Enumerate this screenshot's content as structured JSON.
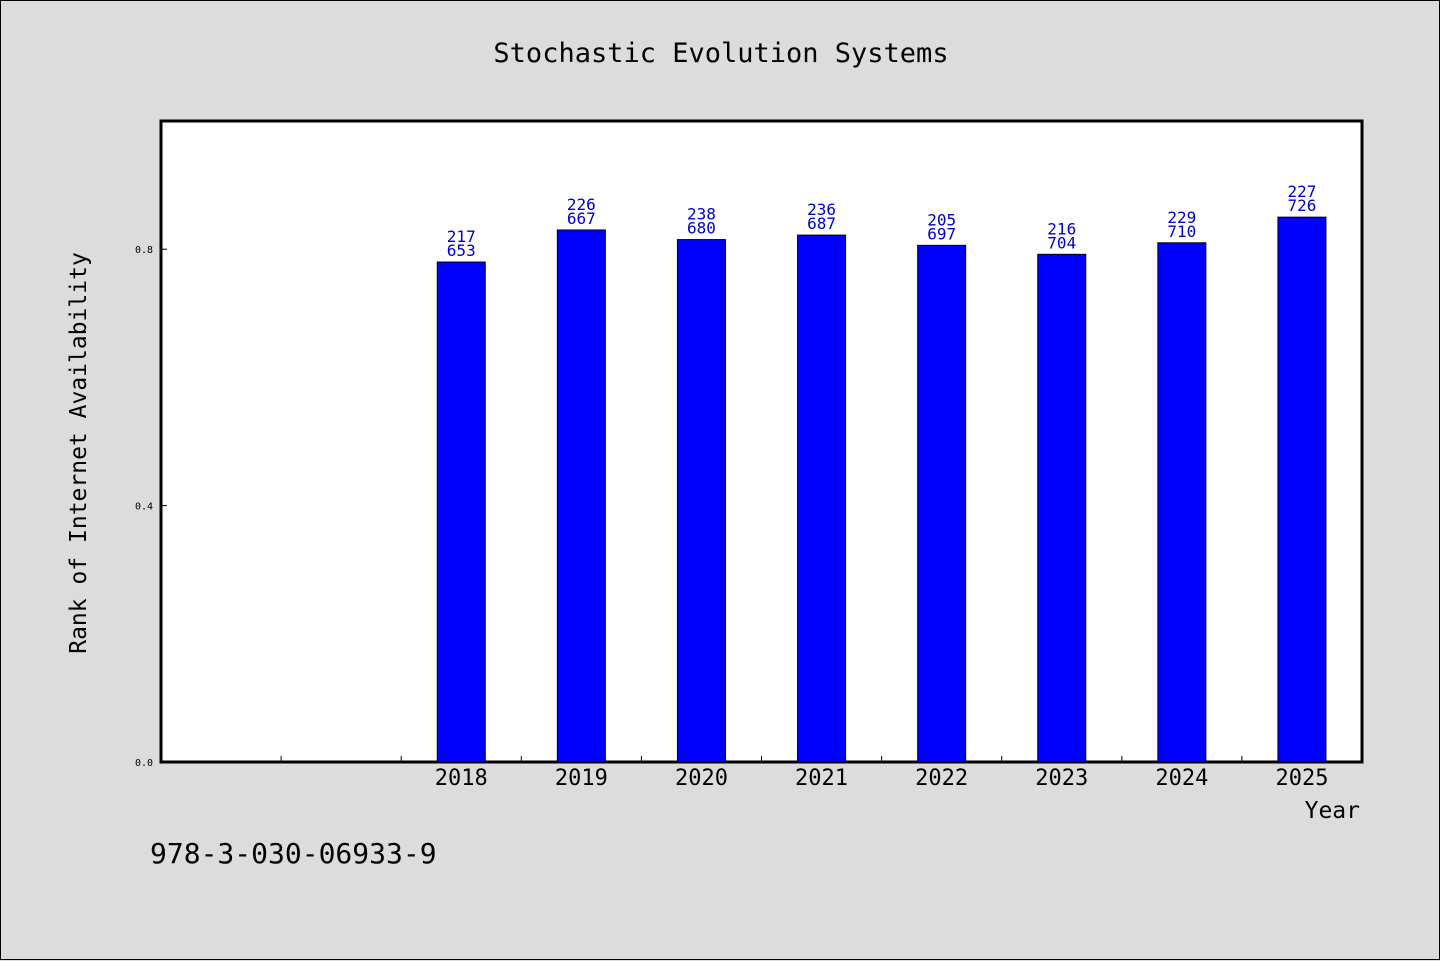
{
  "chart_data": {
    "type": "bar",
    "title": "Stochastic Evolution Systems",
    "xlabel": "Year",
    "ylabel": "Rank of Internet Availability",
    "categories": [
      "2018",
      "2019",
      "2020",
      "2021",
      "2022",
      "2023",
      "2024",
      "2025"
    ],
    "values": [
      0.78,
      0.83,
      0.815,
      0.822,
      0.806,
      0.792,
      0.81,
      0.85
    ],
    "label_top": [
      "217",
      "226",
      "238",
      "236",
      "205",
      "216",
      "229",
      "227"
    ],
    "label_bottom": [
      "653",
      "667",
      "680",
      "687",
      "697",
      "704",
      "710",
      "726"
    ],
    "ylim": [
      0,
      1.0
    ],
    "yticks": [
      0.0,
      0.4,
      0.8
    ],
    "ytick_labels": [
      "0.0",
      "0.4",
      "0.8"
    ],
    "x_leading_empty_slots": 2,
    "bar_color": "#0000ff",
    "label_color": "#0000cc",
    "grid": false,
    "legend": "none"
  },
  "footer": {
    "isbn": "978-3-030-06933-9"
  }
}
